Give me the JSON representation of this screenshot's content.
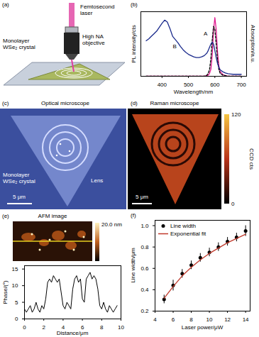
{
  "panels": {
    "a": {
      "panel": "(a)",
      "texts": {
        "laser": "Femtosecond laser",
        "objective": "High NA objective",
        "crystal": "Monolayer WSe₂ crystal"
      }
    },
    "c": {
      "panel": "(c)",
      "title": "Optical microscope",
      "texts": {
        "crystal": "Monolayer WSe₂ crystal",
        "lens": "Lens"
      },
      "scale_bar": "5 μm"
    },
    "d": {
      "panel": "(d)",
      "title": "Raman microscope",
      "scale_bar": "5 μm",
      "colorbar": {
        "label": "CCD cts",
        "range": [
          0,
          120
        ],
        "ticks": [
          0,
          120
        ]
      }
    },
    "e": {
      "panel": "(e)",
      "title": "AFM image",
      "colorbar": {
        "range": [
          0,
          20
        ],
        "ticks": [
          {
            "value": 20,
            "label": "20.0 nm"
          }
        ]
      }
    }
  },
  "chart_data": [
    {
      "type": "line",
      "panel": "(b)",
      "x_label": "Wavelength/nm",
      "y_label": "PL intensity/cts",
      "y2_label": "Absorption/a.u.",
      "xlim": [
        320,
        720
      ],
      "xticks": [
        400,
        500,
        600,
        700
      ],
      "ylim": [
        0,
        1.1
      ],
      "y2lim": [
        0,
        1
      ],
      "tick_labels": "x",
      "x": [
        340,
        350,
        360,
        370,
        380,
        390,
        400,
        410,
        420,
        430,
        440,
        450,
        460,
        470,
        480,
        490,
        500,
        510,
        520,
        530,
        540,
        550,
        560,
        570,
        575,
        580,
        585,
        590,
        595,
        600,
        605,
        610,
        615,
        620,
        630,
        640,
        650,
        660,
        670,
        680,
        690,
        700
      ],
      "series": [
        {
          "color": "#1a2a8c",
          "axis": "y2",
          "values": [
            0.55,
            0.58,
            0.62,
            0.66,
            0.7,
            0.76,
            0.82,
            0.87,
            0.84,
            0.74,
            0.62,
            0.57,
            0.52,
            0.46,
            0.41,
            0.37,
            0.34,
            0.32,
            0.3,
            0.29,
            0.29,
            0.3,
            0.32,
            0.36,
            0.4,
            0.45,
            0.5,
            0.53,
            0.5,
            0.4,
            0.29,
            0.2,
            0.14,
            0.1,
            0.07,
            0.05,
            0.04,
            0.035,
            0.03,
            0.03,
            0.03,
            0.03
          ]
        },
        {
          "color": "#e0198f",
          "values": [
            0,
            0,
            0,
            0,
            0,
            0,
            0,
            0,
            0,
            0,
            0,
            0,
            0,
            0,
            0,
            0,
            0,
            0,
            0,
            0,
            0,
            0,
            0,
            0.01,
            0.02,
            0.05,
            0.12,
            0.35,
            0.78,
            1.0,
            0.8,
            0.42,
            0.18,
            0.08,
            0.03,
            0.01,
            0,
            0,
            0,
            0,
            0,
            0
          ]
        },
        {
          "color": "#000000",
          "line_style": "dashed",
          "values": [
            0,
            0,
            0,
            0,
            0,
            0,
            0,
            0,
            0,
            0,
            0,
            0,
            0,
            0,
            0,
            0,
            0,
            0,
            0,
            0,
            0,
            0,
            0,
            0.02,
            0.05,
            0.12,
            0.3,
            0.62,
            0.85,
            0.8,
            0.55,
            0.28,
            0.12,
            0.05,
            0.02,
            0.01,
            0,
            0,
            0,
            0,
            0,
            0
          ]
        }
      ],
      "annotations": [
        {
          "text": "A",
          "x": 565,
          "y": 0.66,
          "axis": "y2"
        },
        {
          "text": "B",
          "x": 448,
          "y": 0.46,
          "axis": "y2"
        }
      ]
    },
    {
      "type": "line",
      "x_label": "Distance/μm",
      "y_label": "Phase/(°)",
      "xlim": [
        0,
        10
      ],
      "xticks": [
        0,
        2,
        4,
        6,
        8,
        10
      ],
      "ylim": [
        0,
        16
      ],
      "yticks": [
        0,
        5,
        10,
        15
      ],
      "x": [
        0,
        0.2,
        0.4,
        0.6,
        0.8,
        1,
        1.2,
        1.4,
        1.6,
        1.8,
        2,
        2.2,
        2.4,
        2.6,
        2.8,
        3,
        3.2,
        3.4,
        3.6,
        3.8,
        4,
        4.2,
        4.4,
        4.6,
        4.8,
        5,
        5.2,
        5.4,
        5.6,
        5.8,
        6,
        6.2,
        6.4,
        6.6,
        6.8,
        7,
        7.2,
        7.4,
        7.6,
        7.8,
        8,
        8.2,
        8.4,
        8.6,
        8.8,
        9,
        9.2,
        9.4,
        9.6
      ],
      "series": [
        {
          "color": "#000000",
          "values": [
            3,
            2,
            3,
            4,
            2,
            3,
            5,
            3,
            2,
            4,
            3,
            6,
            11,
            12,
            11,
            13,
            12,
            11,
            12,
            8,
            4,
            3,
            5,
            4,
            3,
            9,
            12,
            13,
            11,
            12,
            6,
            5,
            12,
            13,
            14,
            12,
            13,
            12,
            9,
            4,
            3,
            5,
            3,
            2,
            4,
            3,
            2,
            3,
            4
          ]
        }
      ]
    },
    {
      "type": "scatter",
      "panel": "(f)",
      "x_label": "Laser power/μW",
      "y_label": "Line width/μm",
      "xlim": [
        4,
        14.5
      ],
      "xticks": [
        4,
        6,
        8,
        10,
        12,
        14
      ],
      "ylim": [
        0.2,
        1.05
      ],
      "yticks": [
        0.2,
        0.4,
        0.6,
        0.8,
        {
          "value": 1,
          "label": "1.0"
        }
      ],
      "legend": "upper left",
      "x": [
        5,
        6,
        7,
        8,
        9,
        10,
        11,
        12,
        13,
        14
      ],
      "series": [
        {
          "name": "Line width",
          "type": "scatter",
          "marker": "circle",
          "color": "#000000",
          "values": [
            0.31,
            0.44,
            0.55,
            0.63,
            0.7,
            0.75,
            0.8,
            0.85,
            0.89,
            0.95
          ],
          "errors": [
            0.04,
            0.05,
            0.04,
            0.04,
            0.04,
            0.04,
            0.04,
            0.04,
            0.04,
            0.05
          ]
        },
        {
          "name": "Exponential fit",
          "type": "line",
          "color": "#c0392b",
          "values": [
            0.32,
            0.43,
            0.53,
            0.61,
            0.68,
            0.74,
            0.79,
            0.84,
            0.88,
            0.92
          ]
        }
      ]
    }
  ]
}
